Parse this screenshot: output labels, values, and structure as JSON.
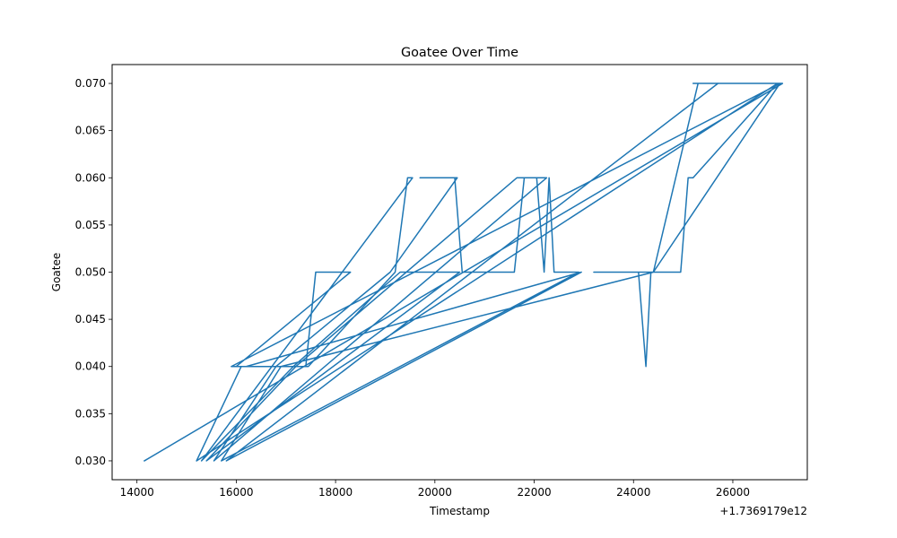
{
  "chart_data": {
    "type": "line",
    "title": "Goatee Over Time",
    "xlabel": "Timestamp",
    "ylabel": "Goatee",
    "x_offset_label": "+1.7369179e12",
    "xlim": [
      13500,
      27500
    ],
    "ylim": [
      0.028,
      0.072
    ],
    "xticks": [
      14000,
      16000,
      18000,
      20000,
      22000,
      24000,
      26000
    ],
    "xtick_labels": [
      "14000",
      "16000",
      "18000",
      "20000",
      "22000",
      "24000",
      "26000"
    ],
    "yticks": [
      0.03,
      0.035,
      0.04,
      0.045,
      0.05,
      0.055,
      0.06,
      0.065,
      0.07
    ],
    "ytick_labels": [
      "0.030",
      "0.035",
      "0.040",
      "0.045",
      "0.050",
      "0.055",
      "0.060",
      "0.065",
      "0.070"
    ],
    "grid": false,
    "legend": false,
    "line_color": "#1f77b4",
    "series": [
      {
        "x": [
          14150,
          27000,
          25200,
          25300,
          24400,
          23200,
          24100,
          24250,
          24350,
          24950,
          25100,
          25200,
          26900,
          15200,
          16100,
          16400,
          17400,
          17600,
          18300,
          16000,
          17300,
          17450,
          19200,
          19450,
          19550,
          15300,
          17150,
          19300,
          20500,
          15400,
          17200,
          21650,
          22250,
          15550,
          16800,
          19100,
          20450,
          19700,
          20400,
          20550,
          20750,
          21600,
          21800,
          22050,
          22200,
          22300,
          22400,
          22900,
          15700,
          16900,
          24400,
          26950,
          15900,
          15950,
          16200,
          22950,
          15800,
          25700
        ],
        "y": [
          0.03,
          0.07,
          0.07,
          0.07,
          0.05,
          0.05,
          0.05,
          0.04,
          0.05,
          0.05,
          0.06,
          0.06,
          0.07,
          0.03,
          0.04,
          0.04,
          0.04,
          0.05,
          0.05,
          0.04,
          0.04,
          0.04,
          0.05,
          0.06,
          0.06,
          0.03,
          0.04,
          0.05,
          0.05,
          0.03,
          0.04,
          0.06,
          0.06,
          0.03,
          0.04,
          0.05,
          0.06,
          0.06,
          0.06,
          0.05,
          0.05,
          0.05,
          0.06,
          0.06,
          0.05,
          0.06,
          0.05,
          0.05,
          0.03,
          0.04,
          0.05,
          0.07,
          0.04,
          0.04,
          0.04,
          0.05,
          0.03,
          0.07
        ]
      }
    ]
  }
}
